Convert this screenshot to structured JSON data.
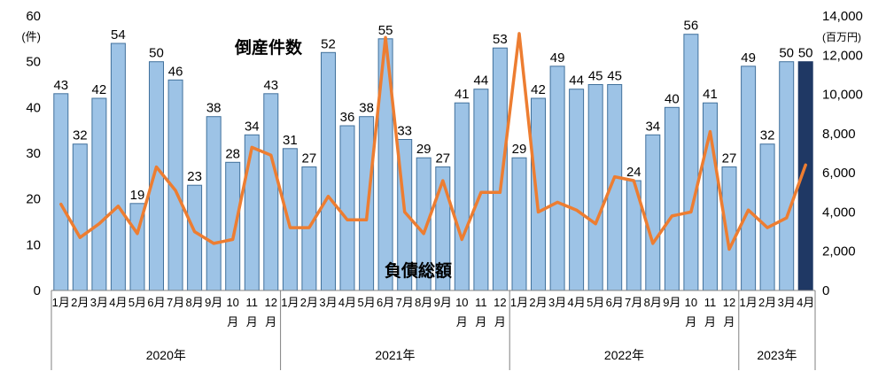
{
  "chart_data": {
    "type": "combo-bar-line",
    "bar_series_label": "倒産件数",
    "line_series_label": "負債総額",
    "left_axis": {
      "unit": "(件)",
      "min": 0,
      "max": 60,
      "ticks": [
        0,
        10,
        20,
        30,
        40,
        50,
        60
      ]
    },
    "right_axis": {
      "unit": "(百万円)",
      "min": 0,
      "max": 14000,
      "ticks": [
        0,
        2000,
        4000,
        6000,
        8000,
        10000,
        12000,
        14000
      ]
    },
    "years": [
      {
        "label": "2020年",
        "months": [
          "1月",
          "2月",
          "3月",
          "4月",
          "5月",
          "6月",
          "7月",
          "8月",
          "9月",
          "10月",
          "11月",
          "12月"
        ]
      },
      {
        "label": "2021年",
        "months": [
          "1月",
          "2月",
          "3月",
          "4月",
          "5月",
          "6月",
          "7月",
          "8月",
          "9月",
          "10月",
          "11月",
          "12月"
        ]
      },
      {
        "label": "2022年",
        "months": [
          "1月",
          "2月",
          "3月",
          "4月",
          "5月",
          "6月",
          "7月",
          "8月",
          "9月",
          "10月",
          "11月",
          "12月"
        ]
      },
      {
        "label": "2023年",
        "months": [
          "1月",
          "2月",
          "3月",
          "4月"
        ]
      }
    ],
    "bars": [
      43,
      32,
      42,
      54,
      19,
      50,
      46,
      23,
      38,
      28,
      34,
      43,
      31,
      27,
      52,
      36,
      38,
      55,
      33,
      29,
      27,
      41,
      44,
      53,
      29,
      42,
      49,
      44,
      45,
      45,
      24,
      34,
      40,
      56,
      41,
      27,
      49,
      32,
      50,
      50
    ],
    "line": [
      4400,
      2700,
      3400,
      4300,
      2900,
      6300,
      5100,
      3000,
      2400,
      2600,
      7300,
      6900,
      3200,
      3200,
      4800,
      3600,
      3600,
      12900,
      4000,
      2900,
      5600,
      2600,
      5000,
      5000,
      13100,
      4000,
      4500,
      4100,
      3400,
      5800,
      5600,
      2400,
      3800,
      4000,
      8100,
      2100,
      4100,
      3200,
      3700,
      6400
    ],
    "highlight_last_bar": true,
    "colors": {
      "bar_fill": "#9DC3E6",
      "bar_stroke": "#41719C",
      "last_bar_fill": "#1F3864",
      "last_bar_stroke": "#1F3864",
      "line": "#ED7D31",
      "bar_label": "#000000",
      "axis": "#808080",
      "bar_series_label_color": "#1F4E79",
      "line_series_label_color": "#ED7D31"
    }
  }
}
